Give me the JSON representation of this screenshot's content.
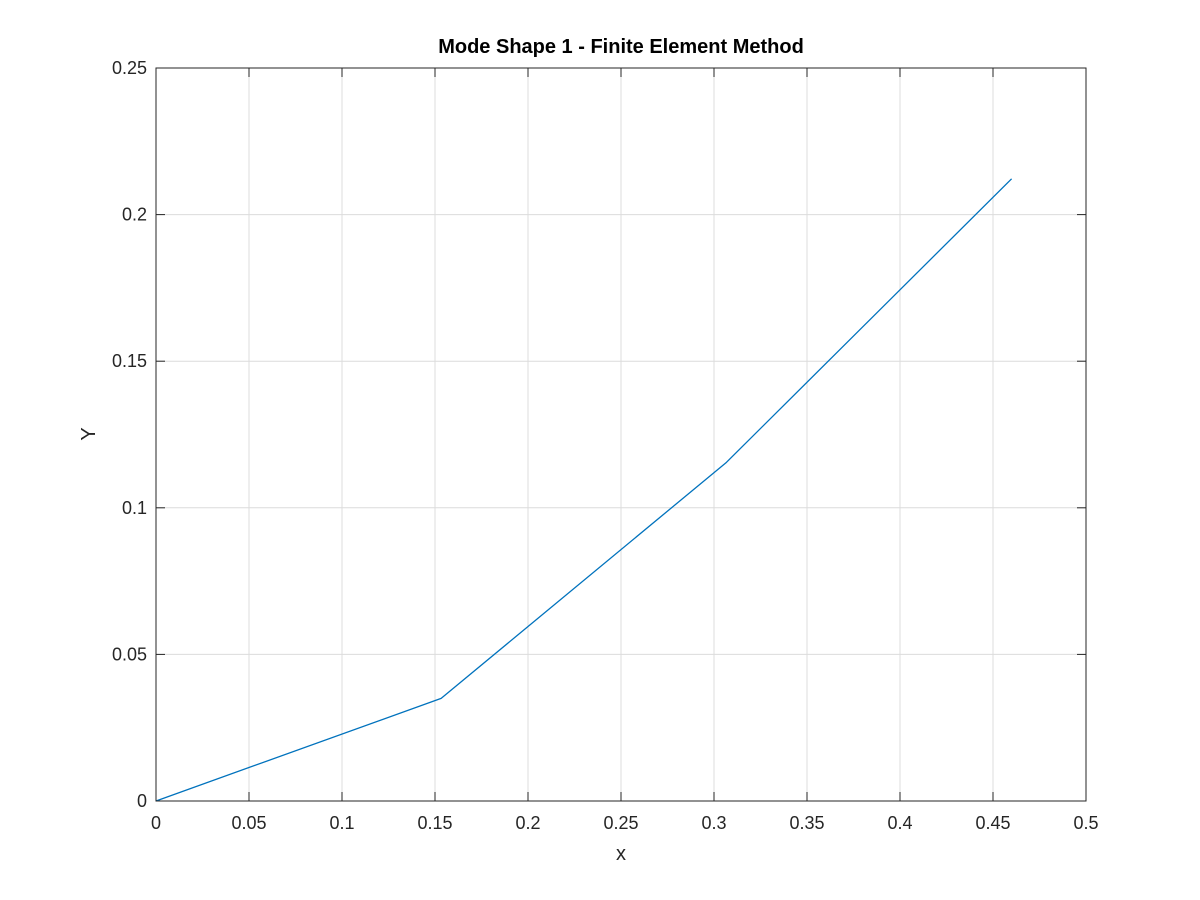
{
  "chart_data": {
    "type": "line",
    "title": "Mode Shape 1 - Finite Element Method",
    "xlabel": "x",
    "ylabel": "Y",
    "xlim": [
      0,
      0.5
    ],
    "ylim": [
      0,
      0.25
    ],
    "xticks": [
      0,
      0.05,
      0.1,
      0.15,
      0.2,
      0.25,
      0.3,
      0.35,
      0.4,
      0.45,
      0.5
    ],
    "xtick_labels": [
      "0",
      "0.05",
      "0.1",
      "0.15",
      "0.2",
      "0.25",
      "0.3",
      "0.35",
      "0.4",
      "0.45",
      "0.5"
    ],
    "yticks": [
      0,
      0.05,
      0.1,
      0.15,
      0.2,
      0.25
    ],
    "ytick_labels": [
      "0",
      "0.05",
      "0.1",
      "0.15",
      "0.2",
      "0.25"
    ],
    "grid": true,
    "series": [
      {
        "color": "#0072BD",
        "x": [
          0,
          0.1533,
          0.3067,
          0.46
        ],
        "y": [
          0,
          0.035,
          0.1155,
          0.2122
        ]
      }
    ]
  }
}
